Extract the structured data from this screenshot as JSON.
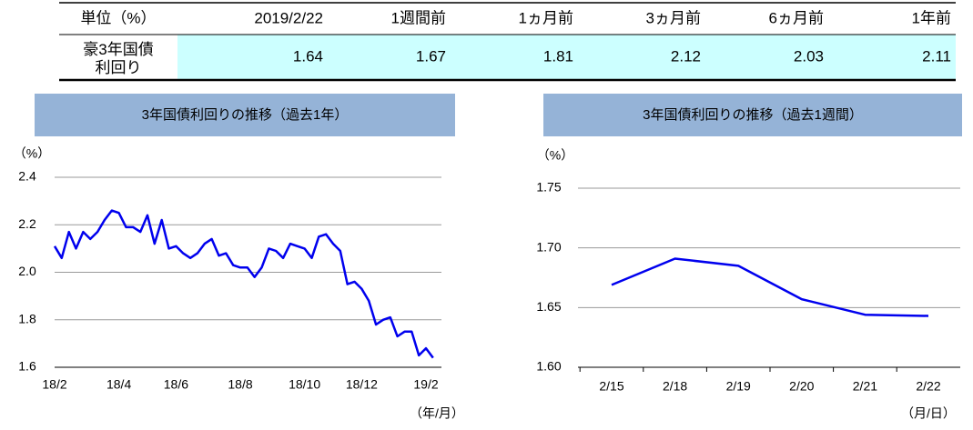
{
  "table": {
    "header": [
      "単位（%）",
      "2019/2/22",
      "1週間前",
      "1ヵ月前",
      "3ヵ月前",
      "6ヵ月前",
      "1年前"
    ],
    "row_label": [
      "豪3年国債",
      "利回り"
    ],
    "row_values": [
      1.64,
      1.67,
      1.81,
      2.12,
      2.03,
      2.11
    ]
  },
  "chart_data": [
    {
      "type": "line",
      "title": "3年国債利回りの推移（過去1年）",
      "y_unit": "（%）",
      "x_unit": "（年/月）",
      "categories": [
        "18/2",
        null,
        null,
        null,
        null,
        null,
        null,
        null,
        null,
        "18/4",
        null,
        null,
        null,
        null,
        null,
        null,
        null,
        "18/6",
        null,
        null,
        null,
        null,
        null,
        null,
        null,
        null,
        "18/8",
        null,
        null,
        null,
        null,
        null,
        null,
        null,
        null,
        "18/10",
        null,
        null,
        null,
        null,
        null,
        null,
        null,
        "18/12",
        null,
        null,
        null,
        null,
        null,
        null,
        null,
        null,
        "19/2",
        null
      ],
      "values": [
        2.11,
        2.06,
        2.17,
        2.1,
        2.17,
        2.14,
        2.17,
        2.22,
        2.26,
        2.25,
        2.19,
        2.19,
        2.17,
        2.24,
        2.12,
        2.22,
        2.1,
        2.11,
        2.08,
        2.06,
        2.08,
        2.12,
        2.14,
        2.07,
        2.08,
        2.03,
        2.02,
        2.02,
        1.98,
        2.02,
        2.1,
        2.09,
        2.06,
        2.12,
        2.11,
        2.1,
        2.06,
        2.15,
        2.16,
        2.12,
        2.09,
        1.95,
        1.96,
        1.93,
        1.88,
        1.78,
        1.8,
        1.81,
        1.73,
        1.75,
        1.75,
        1.65,
        1.68,
        1.64
      ],
      "color": "#0000ee",
      "ylim": [
        1.6,
        2.4
      ],
      "yticks": [
        1.6,
        1.8,
        {
          "value": 2.0,
          "label": "2.0"
        },
        2.2,
        2.4
      ],
      "grid": true
    },
    {
      "type": "line",
      "title": "3年国債利回りの推移（過去1週間）",
      "y_unit": "（%）",
      "x_unit": "（月/日）",
      "categories": [
        "2/15",
        "2/18",
        "2/19",
        "2/20",
        "2/21",
        "2/22"
      ],
      "values": [
        1.669,
        1.691,
        1.685,
        1.657,
        1.644,
        1.643
      ],
      "color": "#0000ee",
      "ylim": [
        1.6,
        1.75
      ],
      "yticks": [
        {
          "value": 1.6,
          "label": "1.60"
        },
        {
          "value": 1.65,
          "label": "1.65"
        },
        {
          "value": 1.7,
          "label": "1.70"
        },
        {
          "value": 1.75,
          "label": "1.75"
        }
      ],
      "grid": true
    }
  ]
}
